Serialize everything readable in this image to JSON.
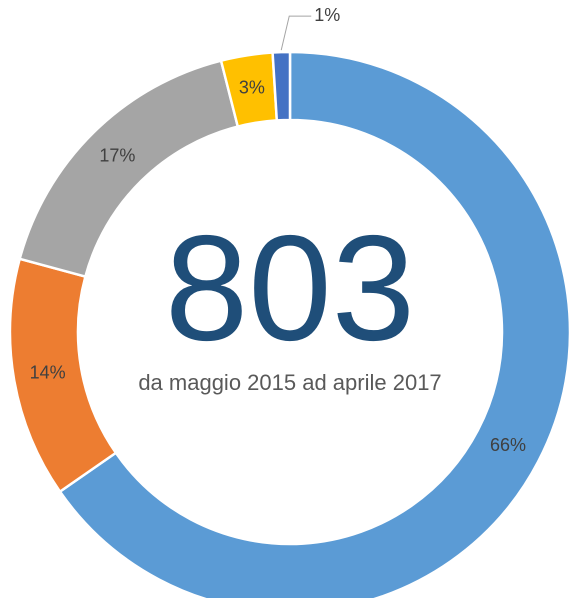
{
  "chart_data": {
    "type": "donut",
    "center_text": "803",
    "subtitle": "da maggio 2015 ad aprile 2017",
    "values": [
      66,
      14,
      17,
      3,
      1
    ],
    "value_labels": [
      "66%",
      "14%",
      "17%",
      "3%",
      "1%"
    ],
    "colors": [
      "#5b9bd5",
      "#ed7d31",
      "#a5a5a5",
      "#ffc000",
      "#4472c4"
    ]
  }
}
